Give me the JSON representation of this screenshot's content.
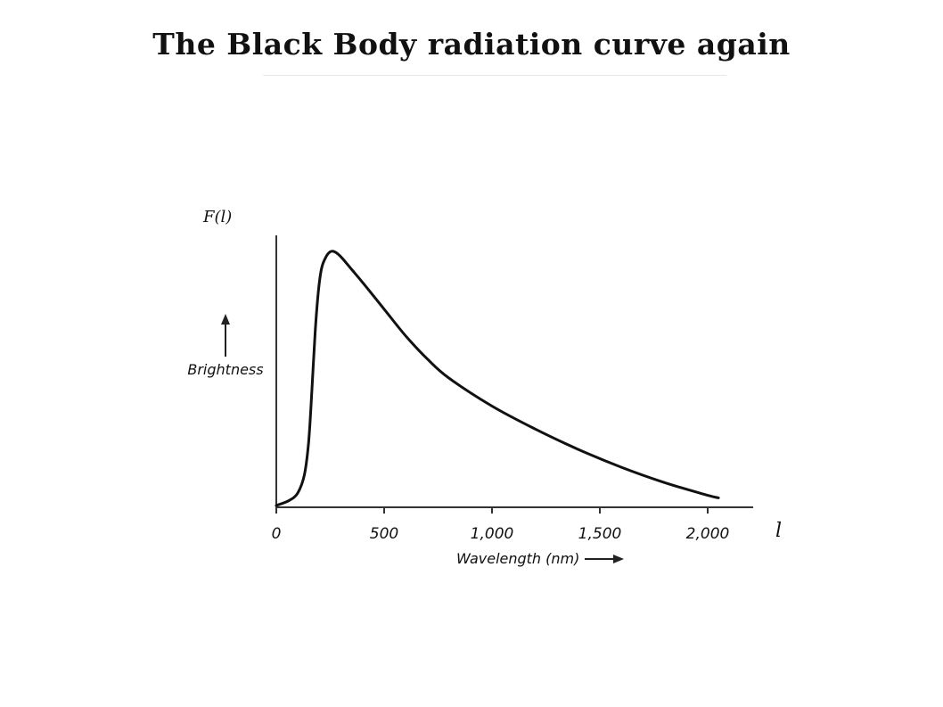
{
  "page": {
    "title": "The Black Body radiation curve again"
  },
  "annotations": {
    "y_symbol": "F(l)",
    "x_symbol": "l"
  },
  "chart_data": {
    "type": "line",
    "title": "",
    "xlabel": "Wavelength (nm)",
    "ylabel": "Brightness",
    "xlim": [
      0,
      2200
    ],
    "ylim": [
      0,
      1.0
    ],
    "x_ticks": [
      0,
      500,
      1000,
      1500,
      2000
    ],
    "x_tick_labels": [
      "0",
      "500",
      "1,000",
      "1,500",
      "2,000"
    ],
    "y_tick_labels": [],
    "grid": false,
    "legend": "none",
    "line_color": "#111111",
    "series": [
      {
        "x": [
          0,
          60,
          100,
          130,
          150,
          165,
          180,
          195,
          210,
          230,
          250,
          270,
          300,
          350,
          400,
          500,
          600,
          700,
          800,
          1000,
          1200,
          1400,
          1600,
          1800,
          2000,
          2050
        ],
        "values": [
          0.0,
          0.02,
          0.05,
          0.12,
          0.25,
          0.45,
          0.68,
          0.84,
          0.93,
          0.975,
          0.995,
          0.995,
          0.975,
          0.925,
          0.875,
          0.77,
          0.665,
          0.575,
          0.5,
          0.39,
          0.3,
          0.22,
          0.15,
          0.09,
          0.04,
          0.03
        ]
      }
    ]
  }
}
